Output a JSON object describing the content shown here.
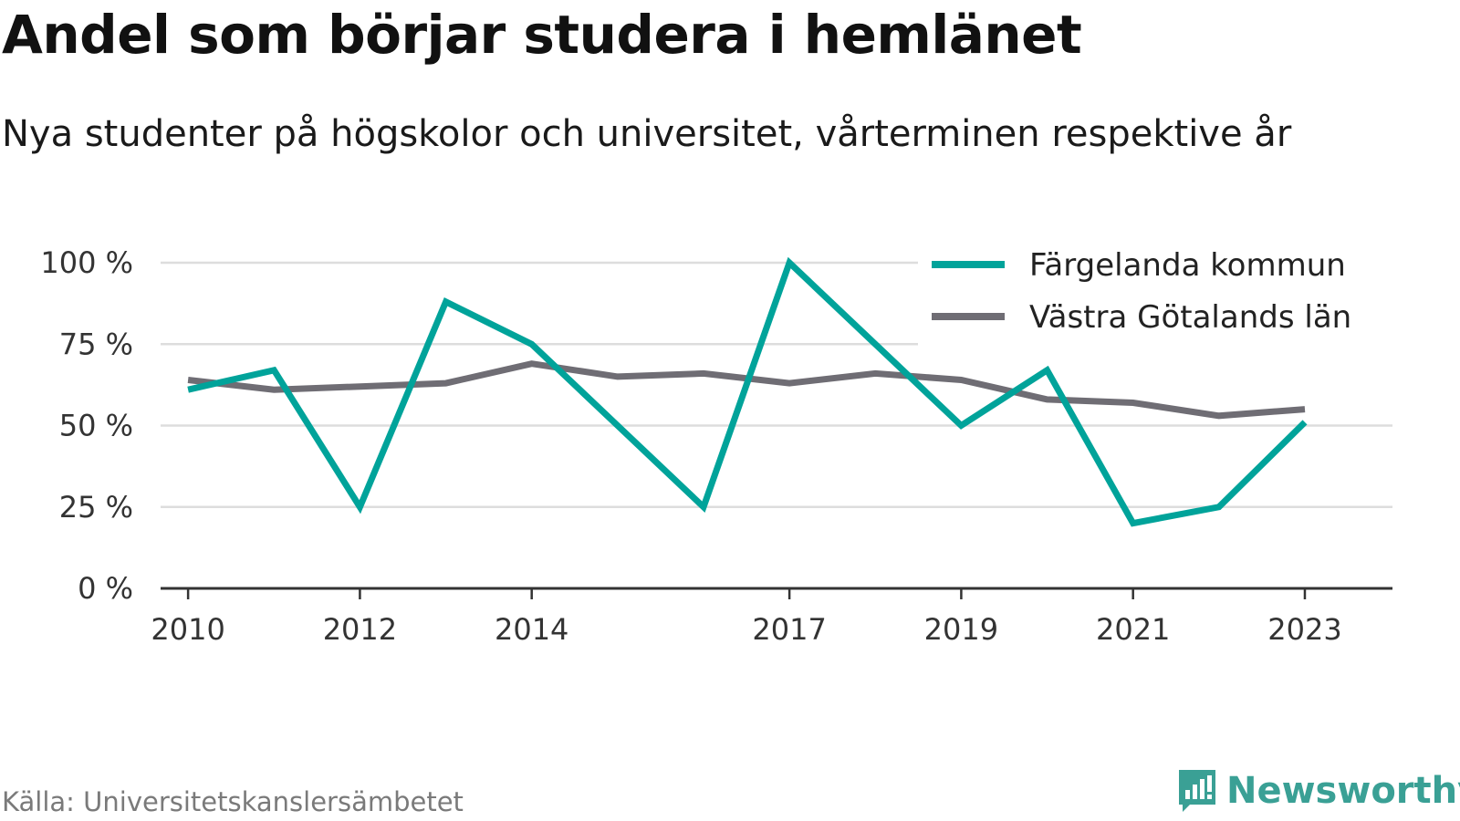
{
  "header": {
    "title": "Andel som börjar studera i hemlänet",
    "subtitle": "Nya studenter på högskolor och universitet, vårterminen respektive år"
  },
  "footer": {
    "source": "Källa: Universitetskanslersämbetet",
    "brand": "Newsworthy"
  },
  "colors": {
    "series_primary": "#00a39a",
    "series_secondary": "#6f6d74",
    "gridline": "#dddddd",
    "axis": "#333333",
    "brand": "#3aa095"
  },
  "chart_data": {
    "type": "line",
    "title": "Andel som börjar studera i hemlänet",
    "subtitle": "Nya studenter på högskolor och universitet, vårterminen respektive år",
    "x": [
      2010,
      2011,
      2012,
      2013,
      2014,
      2015,
      2016,
      2017,
      2018,
      2019,
      2020,
      2021,
      2022,
      2023
    ],
    "xticks": [
      "2010",
      "2012",
      "2014",
      "2017",
      "2019",
      "2021",
      "2023"
    ],
    "yticks": [
      "0 %",
      "25 %",
      "50 %",
      "75 %",
      "100 %"
    ],
    "ylim": [
      0,
      100
    ],
    "yunit": "%",
    "grid": true,
    "legend_position": "top-right",
    "series": [
      {
        "name": "Färgelanda kommun",
        "color": "#00a39a",
        "values": [
          61,
          67,
          25,
          88,
          75,
          50,
          25,
          100,
          75,
          50,
          67,
          20,
          25,
          51
        ]
      },
      {
        "name": "Västra Götalands län",
        "color": "#6f6d74",
        "values": [
          64,
          61,
          62,
          63,
          69,
          65,
          66,
          63,
          66,
          64,
          58,
          57,
          53,
          55
        ]
      }
    ]
  }
}
